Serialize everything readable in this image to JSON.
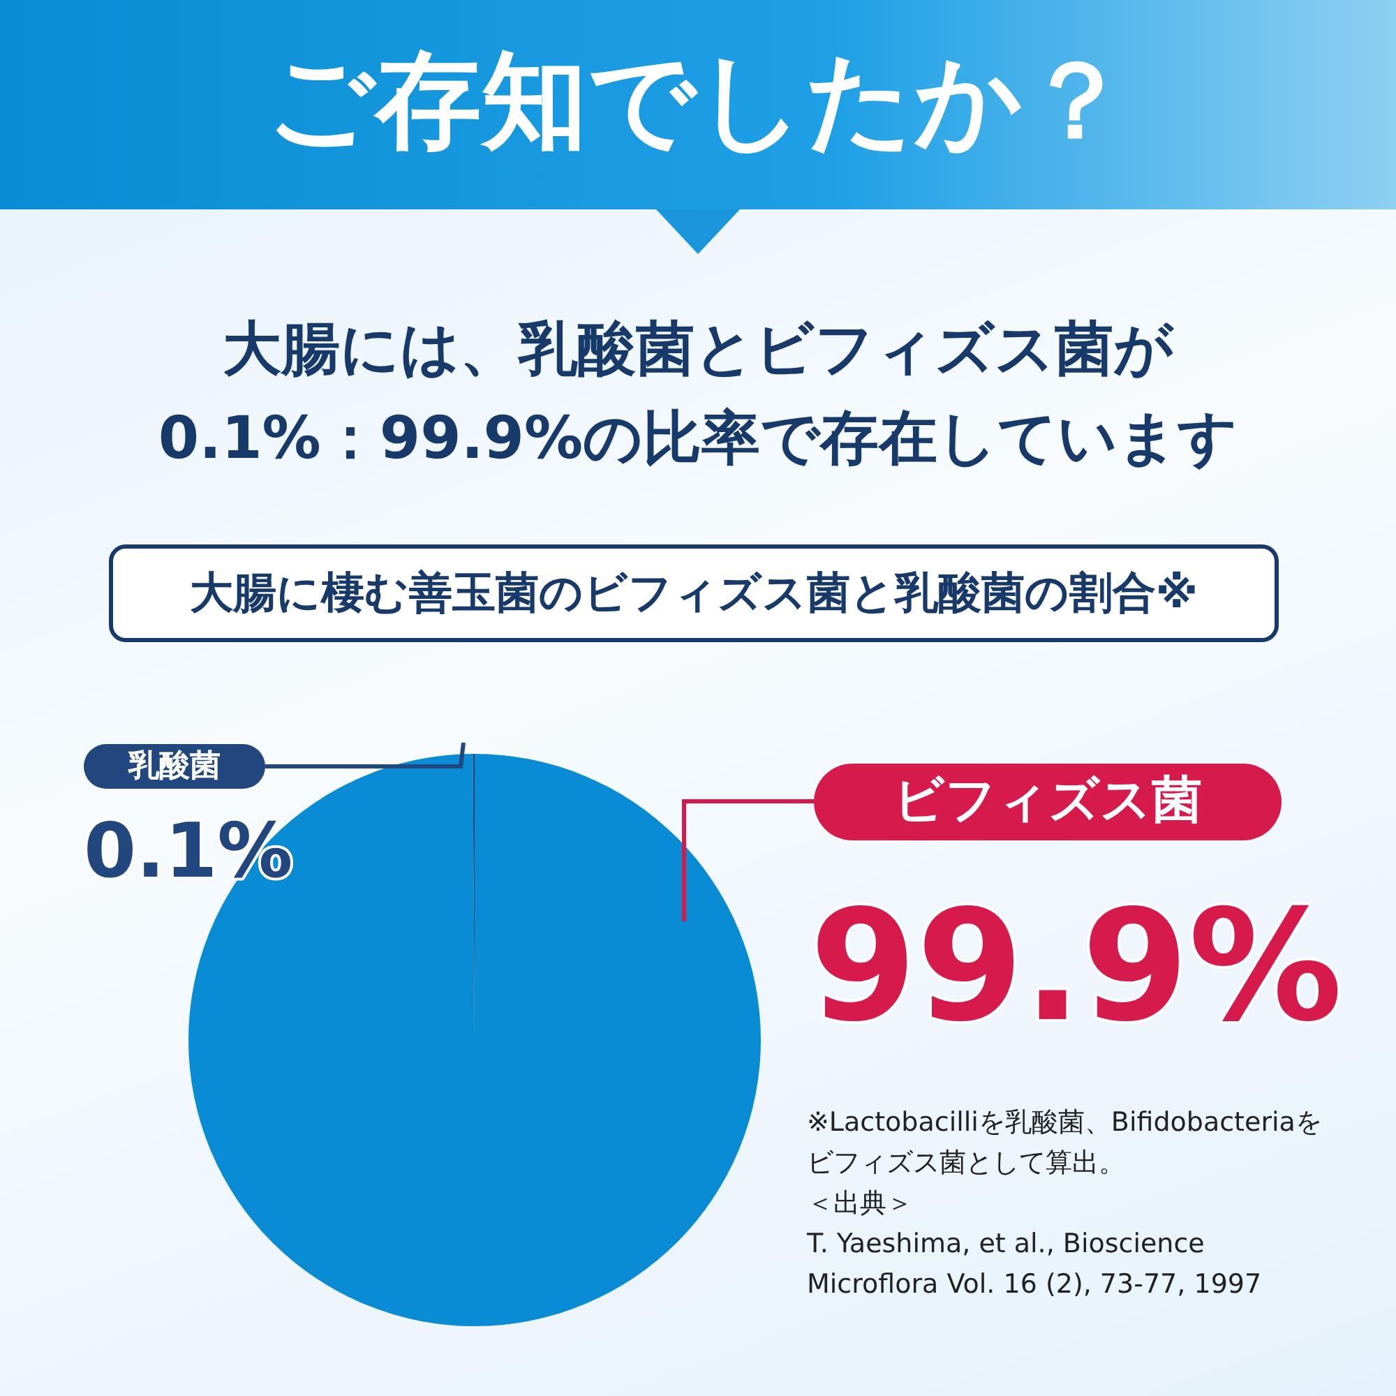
{
  "chart_data": {
    "type": "pie",
    "title": "ご存知でしたか？",
    "subtitle": "大腸には、乳酸菌とビフィズス菌が\n0.1%：99.9%の比率で存在しています",
    "legend_title": "大腸に棲む善玉菌のビフィズス菌と乳酸菌の割合※",
    "categories": [
      "ビフィズス菌",
      "乳酸菌"
    ],
    "values": [
      99.9,
      0.1
    ],
    "colors": [
      "#0a8cd4",
      "#22467e"
    ],
    "value_labels": [
      "99.9%",
      "0.1%"
    ],
    "annotations": [
      "※Lactobacilliを乳酸菌、Bifidobacteriaをビフィズス菌として算出。",
      "＜出典＞",
      "T. Yaeshima, et al., Bioscience Microflora Vol. 16 (2), 73-77, 1997"
    ]
  }
}
